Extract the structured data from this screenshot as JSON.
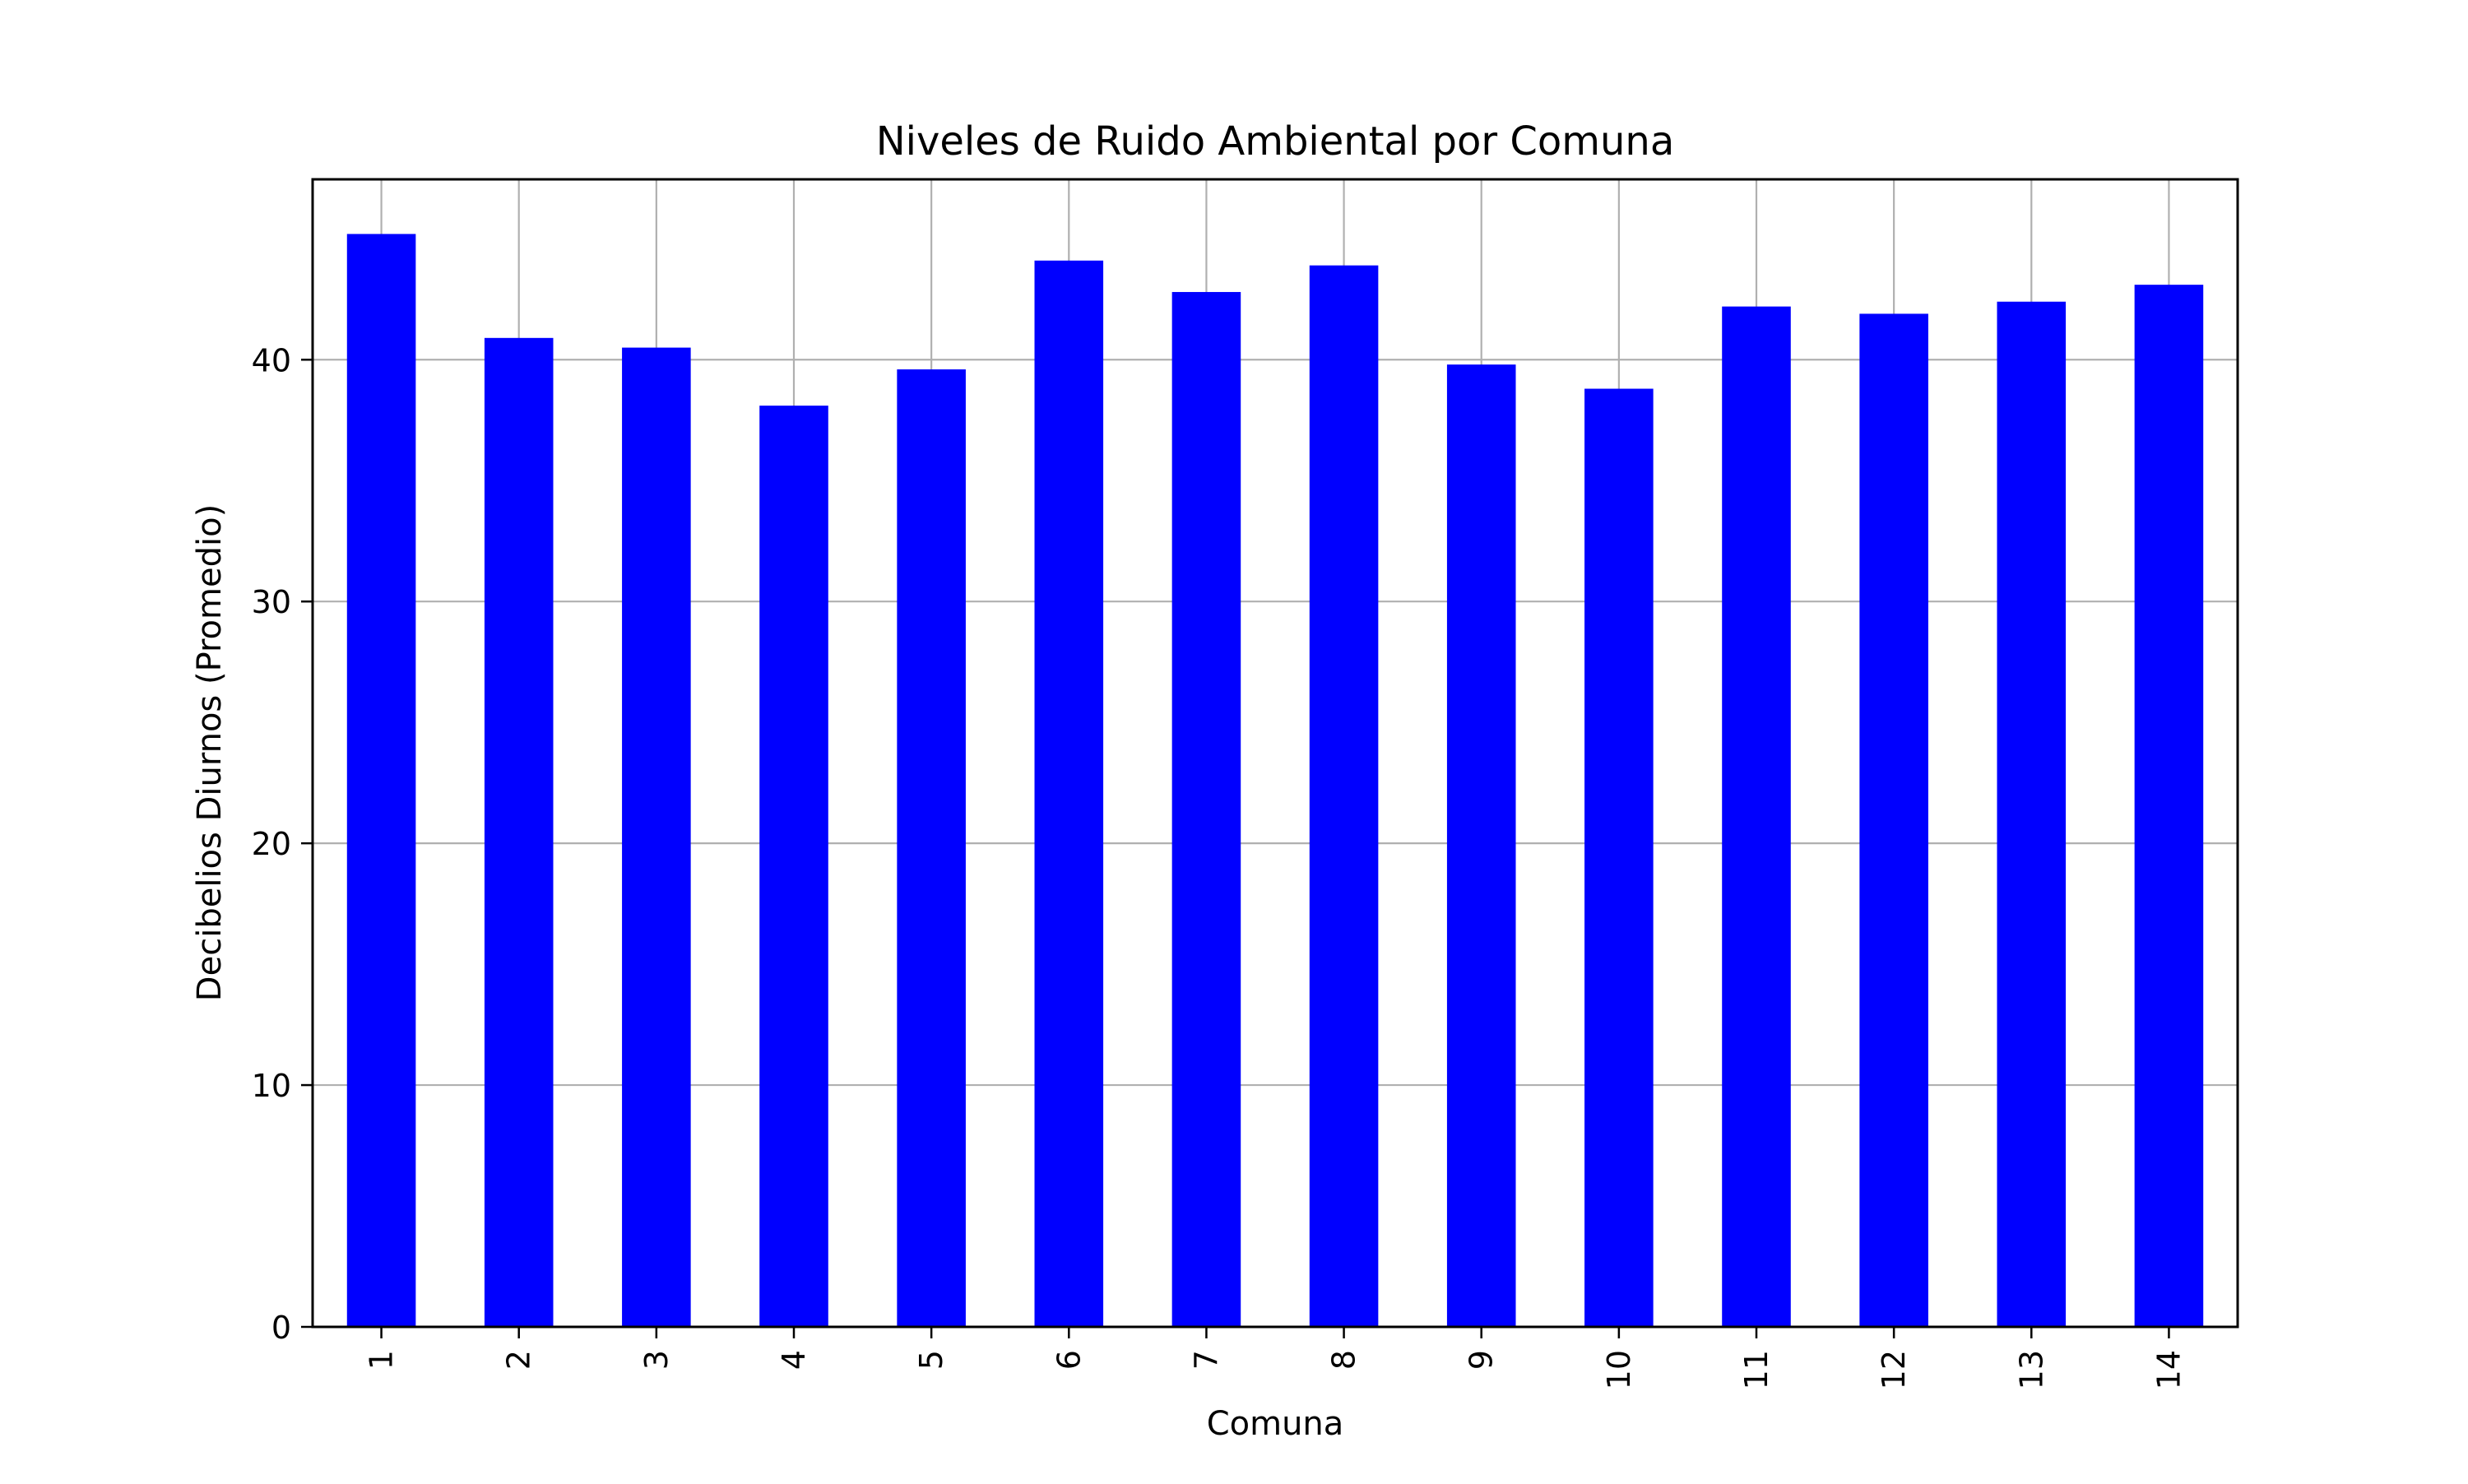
{
  "chart_data": {
    "type": "bar",
    "title": "Niveles de Ruido Ambiental por Comuna",
    "xlabel": "Comuna",
    "ylabel": "Decibelios Diurnos (Promedio)",
    "categories": [
      "1",
      "2",
      "3",
      "4",
      "5",
      "6",
      "7",
      "8",
      "9",
      "10",
      "11",
      "12",
      "13",
      "14"
    ],
    "series": [
      {
        "values": [
          45.2,
          40.9,
          40.5,
          38.1,
          39.6,
          44.1,
          42.8,
          43.9,
          39.8,
          38.8,
          42.2,
          41.9,
          42.4,
          43.1
        ],
        "color": "#0000ff"
      }
    ],
    "ylim": [
      0,
      47.46
    ],
    "yticks": [
      0,
      10,
      20,
      30,
      40
    ],
    "ytick_labels": [
      "0",
      "10",
      "20",
      "30",
      "40"
    ],
    "grid": true,
    "legend": "none",
    "tick_label_rotation": "vertical"
  }
}
